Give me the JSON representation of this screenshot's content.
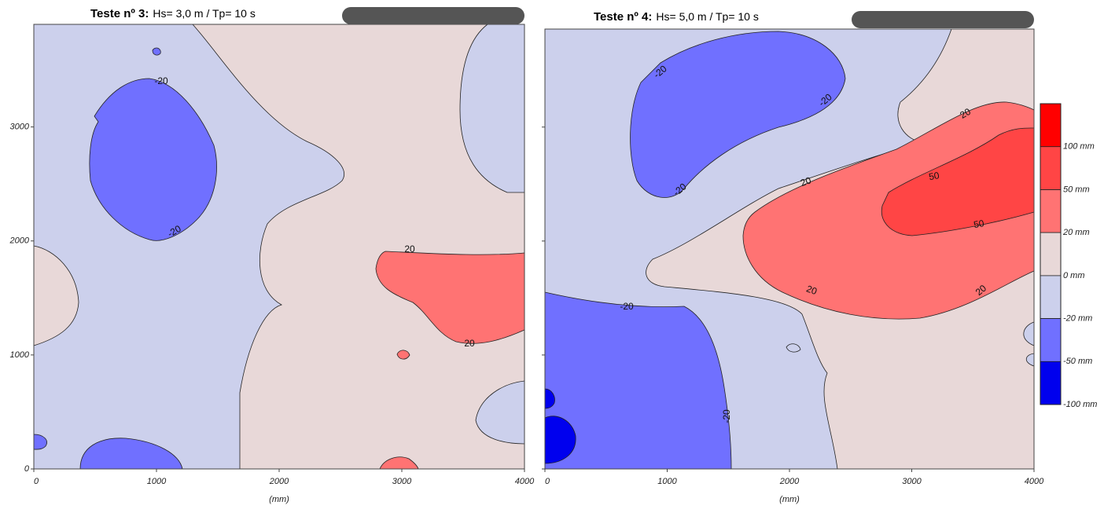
{
  "chart_data": [
    {
      "type": "contour",
      "title_bold": "Teste nº 3:",
      "title": "Hs= 3,0 m / Tp= 10 s",
      "xlabel": "(mm)",
      "xlim": [
        0,
        4000
      ],
      "xticks": [
        0,
        1000,
        2000,
        3000,
        4000
      ],
      "ylim": [
        0,
        3900
      ],
      "yticks": [
        0,
        1000,
        2000,
        3000
      ],
      "ytick_labels": true,
      "contour_labels": [
        "-20",
        "-20",
        "20",
        "20"
      ]
    },
    {
      "type": "contour",
      "title_bold": "Teste nº 4:",
      "title": "Hs= 5,0 m / Tp= 10 s",
      "xlabel": "(mm)",
      "xlim": [
        0,
        4000
      ],
      "xticks": [
        0,
        1000,
        2000,
        3000,
        4000
      ],
      "ylim": [
        0,
        3860
      ],
      "yticks": [
        0,
        1000,
        2000,
        3000
      ],
      "ytick_labels": false,
      "contour_labels": [
        "-20",
        "-20",
        "-20",
        "20",
        "20",
        "20",
        "20",
        "50",
        "50",
        "-20",
        "-20"
      ]
    }
  ],
  "colorbar": {
    "levels": [
      {
        "value": 100,
        "label": "100 mm"
      },
      {
        "value": 50,
        "label": "50 mm"
      },
      {
        "value": 20,
        "label": "20 mm"
      },
      {
        "value": 0,
        "label": "0 mm"
      },
      {
        "value": -20,
        "label": "-20 mm"
      },
      {
        "value": -50,
        "label": "-50 mm"
      },
      {
        "value": -100,
        "label": "-100 mm"
      }
    ],
    "colors": [
      "#ff0000",
      "#ff4545",
      "#ff7373",
      "#e8d8d8",
      "#ccd0ec",
      "#7070ff",
      "#0000ee"
    ]
  }
}
